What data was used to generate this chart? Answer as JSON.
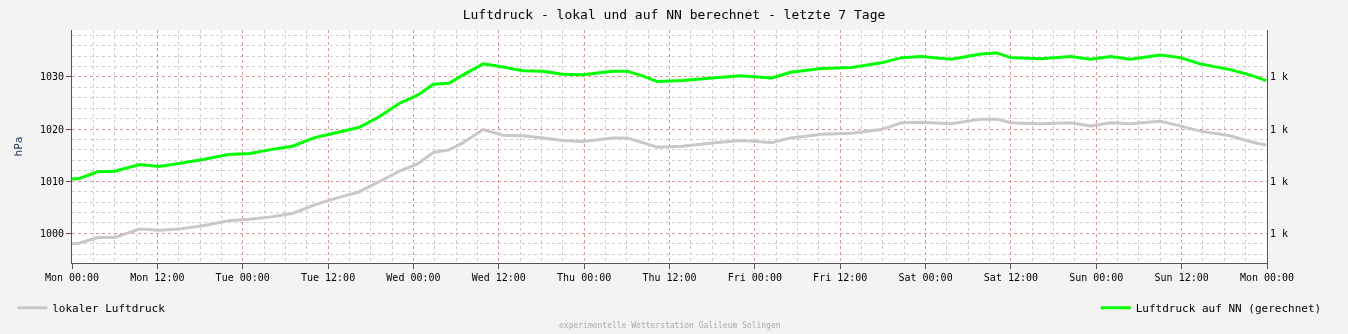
{
  "chart_data": {
    "type": "line",
    "title": "Luftdruck - lokal und auf NN berechnet - letzte 7 Tage",
    "ylabel": "hPa",
    "annotations": [
      "experimentelle Wetterstation Galileum Solingen"
    ],
    "x": [
      "--01-01T00:00",
      "--01-01T01:00",
      "--01-01T03:36",
      "--01-01T06:00",
      "--01-01T09:30",
      "--01-01T12:18",
      "--01-01T15:00",
      "--01-01T18:36",
      "--01-01T22:00",
      "--01-02T01:00",
      "--01-02T03:42",
      "--01-02T07:00",
      "--01-02T10:00",
      "--01-02T12:48",
      "--01-02T16:18",
      "--01-02T19:00",
      "--01-02T22:00",
      "--01-03T00:42",
      "--01-03T02:48",
      "--01-03T05:00",
      "--01-03T07:00",
      "--01-03T09:48",
      "--01-03T12:36",
      "--01-03T15:24",
      "--01-03T18:12",
      "--01-03T21:00",
      "--01-03T23:48",
      "--01-04T04:00",
      "--01-04T06:00",
      "--01-04T08:12",
      "--01-04T10:18",
      "--01-04T13:48",
      "--01-04T18:00",
      "--01-04T22:00",
      "--01-05T02:24",
      "--01-05T05:00",
      "--01-05T09:24",
      "--01-05T13:36",
      "--01-05T17:48",
      "--01-05T20:36",
      "--01-05T23:24",
      "--01-06T03:36",
      "--01-06T07:48",
      "--01-06T10:00",
      "--01-06T12:00",
      "--01-06T16:12",
      "--01-06T20:24",
      "--01-06T23:12",
      "--01-07T02:00",
      "--01-07T04:48",
      "--01-07T09:00",
      "--01-07T11:48",
      "--01-07T14:36",
      "--01-07T18:48",
      "--01-07T21:36",
      "--01-07T23:54"
    ],
    "series": [
      {
        "name": "lokaler Luftdruck",
        "color": "#c8c8c8",
        "values": [
          998.0,
          998.1,
          999.2,
          999.2,
          1000.8,
          1000.6,
          1000.8,
          1001.5,
          1002.4,
          1002.7,
          1003.1,
          1003.8,
          1005.4,
          1006.6,
          1007.9,
          1009.8,
          1011.9,
          1013.4,
          1015.5,
          1016.0,
          1017.4,
          1019.9,
          1018.8,
          1018.7,
          1018.3,
          1017.8,
          1017.6,
          1018.3,
          1018.3,
          1017.4,
          1016.5,
          1016.7,
          1017.3,
          1017.8,
          1017.4,
          1018.3,
          1019.0,
          1019.2,
          1019.9,
          1021.2,
          1021.3,
          1021.0,
          1021.9,
          1021.9,
          1021.2,
          1021.0,
          1021.2,
          1020.6,
          1021.2,
          1021.0,
          1021.5,
          1020.6,
          1019.6,
          1018.7,
          1017.6,
          1016.9
        ]
      },
      {
        "name": "Luftdruck auf NN (gerechnet)",
        "color": "#00ff00",
        "values": [
          1010.4,
          1010.5,
          1011.8,
          1011.9,
          1013.2,
          1012.8,
          1013.4,
          1014.2,
          1015.1,
          1015.3,
          1016.0,
          1016.7,
          1018.3,
          1019.2,
          1020.3,
          1022.2,
          1024.9,
          1026.6,
          1028.6,
          1028.8,
          1030.4,
          1032.5,
          1031.9,
          1031.2,
          1031.1,
          1030.5,
          1030.4,
          1031.1,
          1031.1,
          1030.2,
          1029.1,
          1029.3,
          1029.8,
          1030.2,
          1029.8,
          1030.9,
          1031.6,
          1031.8,
          1032.7,
          1033.7,
          1033.9,
          1033.4,
          1034.4,
          1034.6,
          1033.7,
          1033.5,
          1033.9,
          1033.4,
          1033.9,
          1033.4,
          1034.2,
          1033.7,
          1032.5,
          1031.4,
          1030.4,
          1029.3
        ]
      }
    ],
    "xlim": [
      "--01-01T00:00",
      "--01-08T00:00"
    ],
    "xticks": [
      {
        "value": "--01-01T00:00",
        "label": "Mon 00:00"
      },
      {
        "value": "--01-01T12:00",
        "label": "Mon 12:00"
      },
      {
        "value": "--01-02T00:00",
        "label": "Tue 00:00"
      },
      {
        "value": "--01-02T12:00",
        "label": "Tue 12:00"
      },
      {
        "value": "--01-03T00:00",
        "label": "Wed 00:00"
      },
      {
        "value": "--01-03T12:00",
        "label": "Wed 12:00"
      },
      {
        "value": "--01-04T00:00",
        "label": "Thu 00:00"
      },
      {
        "value": "--01-04T12:00",
        "label": "Thu 12:00"
      },
      {
        "value": "--01-05T00:00",
        "label": "Fri 00:00"
      },
      {
        "value": "--01-05T12:00",
        "label": "Fri 12:00"
      },
      {
        "value": "--01-06T00:00",
        "label": "Sat 00:00"
      },
      {
        "value": "--01-06T12:00",
        "label": "Sat 12:00"
      },
      {
        "value": "--01-07T00:00",
        "label": "Sun 00:00"
      },
      {
        "value": "--01-07T12:00",
        "label": "Sun 12:00"
      },
      {
        "value": "--01-08T00:00",
        "label": "Mon 00:00"
      }
    ],
    "ylim": [
      994.3,
      1039
    ],
    "yticks": [
      1000,
      1010,
      1020,
      1030
    ],
    "y2lim": [
      994.3,
      1039
    ],
    "y2ticks": [
      {
        "value": 1000,
        "label": "1 k"
      },
      {
        "value": 1010,
        "label": "1 k"
      },
      {
        "value": 1020,
        "label": "1 k"
      },
      {
        "value": 1030,
        "label": "1 k"
      }
    ],
    "grid": true,
    "legend": "bottom",
    "marker": "none",
    "line_style": "solid"
  }
}
